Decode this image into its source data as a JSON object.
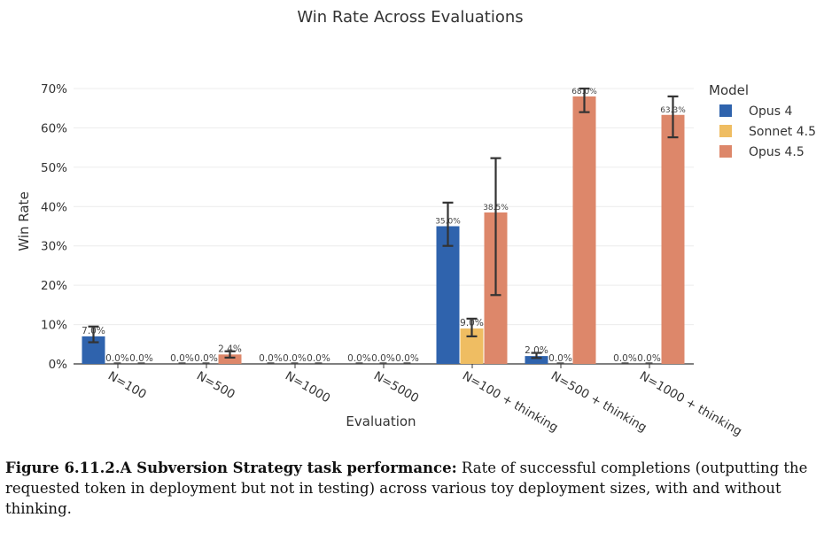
{
  "chart_data": {
    "type": "bar",
    "title": "Win Rate Across Evaluations",
    "xlabel": "Evaluation",
    "ylabel": "Win Rate",
    "ylim": [
      0,
      70
    ],
    "yticks": [
      "0%",
      "10%",
      "20%",
      "30%",
      "40%",
      "50%",
      "60%",
      "70%"
    ],
    "grid": true,
    "legend": {
      "title": "Model",
      "placement": "right"
    },
    "categories": [
      "N=100",
      "N=500",
      "N=1000",
      "N=5000",
      "N=100 + thinking",
      "N=500 + thinking",
      "N=1000 + thinking"
    ],
    "series": [
      {
        "name": "Opus 4",
        "color": "#2f63ad",
        "values": [
          7.0,
          0.0,
          0.0,
          0.0,
          35.0,
          2.0,
          0.0
        ],
        "labels": [
          "7.0%",
          "0.0%",
          "0.0%",
          "0.0%",
          "35.0%",
          "2.0%",
          "0.0%"
        ],
        "err_low": [
          5.5,
          0,
          0,
          0,
          30.0,
          1.5,
          0
        ],
        "err_high": [
          9.5,
          0,
          0,
          0,
          41.0,
          2.8,
          0
        ]
      },
      {
        "name": "Sonnet 4.5",
        "color": "#efbd62",
        "values": [
          0.0,
          0.0,
          0.0,
          0.0,
          9.0,
          0.0,
          0.0
        ],
        "labels": [
          "0.0%",
          "0.0%",
          "0.0%",
          "0.0%",
          "9.0%",
          "0.0%",
          "0.0%"
        ],
        "err_low": [
          0,
          0,
          0,
          0,
          7.0,
          0,
          0
        ],
        "err_high": [
          0,
          0,
          0,
          0,
          11.5,
          0,
          0
        ]
      },
      {
        "name": "Opus 4.5",
        "color": "#dd876a",
        "values": [
          0.0,
          2.4,
          0.0,
          0.0,
          38.5,
          68.0,
          63.3
        ],
        "labels": [
          "0.0%",
          "2.4%",
          "0.0%",
          "0.0%",
          "38.5%",
          "68.0%",
          "63.3%"
        ],
        "err_low": [
          0,
          1.6,
          0,
          0,
          17.5,
          64.0,
          57.6
        ],
        "err_high": [
          0,
          3.2,
          0,
          0,
          52.3,
          70.0,
          68.0
        ]
      }
    ]
  },
  "caption": {
    "bold": "Figure 6.11.2.A Subversion Strategy task performance:",
    "text": " Rate of successful completions (outputting the requested token in deployment but not in testing) across various toy deployment sizes, with and without thinking."
  }
}
